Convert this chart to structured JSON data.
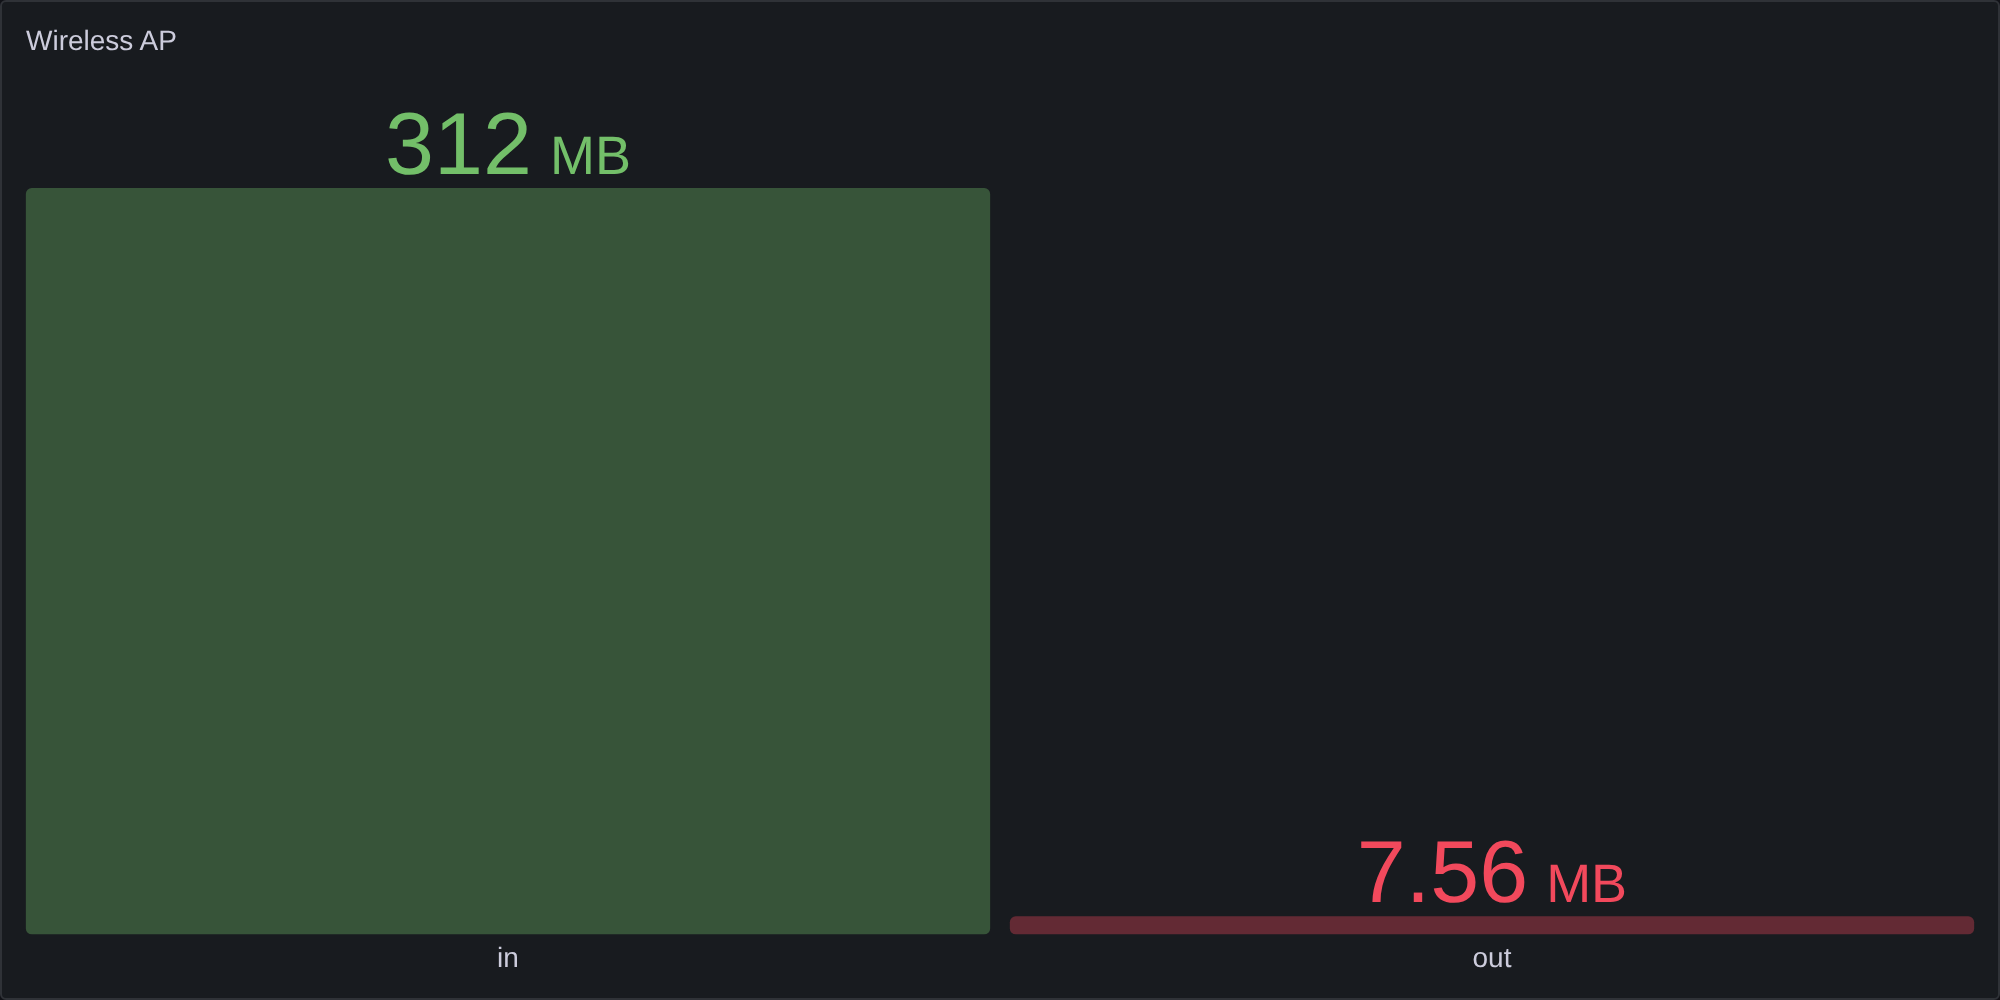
{
  "chart_data": {
    "type": "bar",
    "title": "Wireless AP",
    "categories": [
      "in",
      "out"
    ],
    "values": [
      312,
      7.56
    ],
    "colors": [
      "#73bf69",
      "#f2495c"
    ],
    "value_labels": [
      "312 MB",
      "7.56 MB"
    ]
  }
}
